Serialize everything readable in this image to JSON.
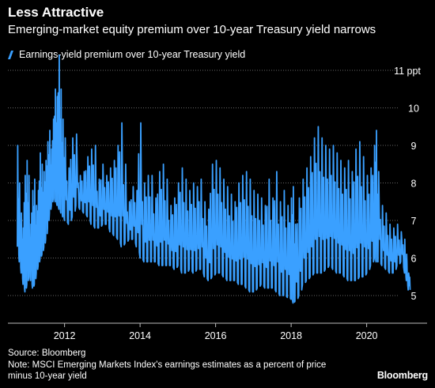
{
  "title": "Less Attractive",
  "subtitle": "Emerging-market equity premium over 10-year Treasury yield narrows",
  "legend_label": "Earnings-yield premium over 10-year Treasury yield",
  "footer": {
    "source": "Source: Bloomberg",
    "note_line1": "Note: MSCI Emerging Markets Index's earnings estimates as a percent of price",
    "note_line2": "minus 10-year yield"
  },
  "brand": "Bloomberg",
  "colors": {
    "series": "#3aa0ff",
    "grid": "#666666",
    "background": "#000000",
    "text": "#ffffff"
  },
  "chart_data": {
    "type": "line",
    "title": "Less Attractive",
    "subtitle": "Emerging-market equity premium over 10-year Treasury yield narrows",
    "x_tick_labels": [
      "2012",
      "2014",
      "2016",
      "2018",
      "2020"
    ],
    "y_tick_labels": [
      "5",
      "6",
      "7",
      "8",
      "9",
      "10",
      "11 ppt"
    ],
    "y_ticks": [
      5,
      6,
      7,
      8,
      9,
      10,
      11
    ],
    "ylim": [
      4.7,
      11.3
    ],
    "xlim": [
      2010.5,
      2021.6
    ],
    "grid": "horizontal dotted",
    "legend_position": "top-left",
    "series": [
      {
        "name": "Earnings-yield premium over 10-year Treasury yield",
        "x": [
          2010.75,
          2010.8,
          2010.85,
          2010.9,
          2010.95,
          2011.0,
          2011.05,
          2011.1,
          2011.15,
          2011.2,
          2011.25,
          2011.3,
          2011.35,
          2011.4,
          2011.45,
          2011.5,
          2011.55,
          2011.6,
          2011.65,
          2011.7,
          2011.75,
          2011.8,
          2011.85,
          2011.9,
          2011.95,
          2012.0,
          2012.1,
          2012.2,
          2012.3,
          2012.4,
          2012.5,
          2012.6,
          2012.7,
          2012.8,
          2012.9,
          2013.0,
          2013.1,
          2013.2,
          2013.3,
          2013.4,
          2013.5,
          2013.6,
          2013.7,
          2013.8,
          2013.9,
          2014.0,
          2014.1,
          2014.2,
          2014.3,
          2014.4,
          2014.5,
          2014.6,
          2014.7,
          2014.8,
          2014.9,
          2015.0,
          2015.1,
          2015.2,
          2015.3,
          2015.4,
          2015.5,
          2015.6,
          2015.7,
          2015.8,
          2015.9,
          2016.0,
          2016.1,
          2016.2,
          2016.3,
          2016.4,
          2016.5,
          2016.6,
          2016.7,
          2016.8,
          2016.9,
          2017.0,
          2017.1,
          2017.2,
          2017.3,
          2017.4,
          2017.5,
          2017.6,
          2017.7,
          2017.8,
          2017.9,
          2018.0,
          2018.05,
          2018.1,
          2018.2,
          2018.3,
          2018.4,
          2018.5,
          2018.6,
          2018.7,
          2018.8,
          2018.9,
          2019.0,
          2019.1,
          2019.2,
          2019.3,
          2019.4,
          2019.5,
          2019.6,
          2019.7,
          2019.8,
          2019.9,
          2020.0,
          2020.1,
          2020.2,
          2020.25,
          2020.3,
          2020.4,
          2020.5,
          2020.6,
          2020.7,
          2020.8,
          2020.9,
          2021.0,
          2021.05,
          2021.1
        ],
        "low": [
          6.3,
          5.9,
          5.6,
          5.3,
          5.1,
          5.3,
          5.5,
          5.4,
          5.2,
          5.3,
          5.6,
          5.8,
          6.0,
          6.1,
          6.3,
          6.5,
          6.8,
          7.2,
          7.4,
          7.6,
          7.5,
          7.4,
          7.3,
          7.2,
          7.1,
          7.0,
          6.9,
          7.1,
          7.4,
          7.3,
          7.2,
          7.1,
          6.9,
          6.8,
          6.8,
          6.9,
          6.9,
          6.7,
          6.6,
          6.5,
          6.3,
          6.4,
          6.5,
          6.5,
          6.3,
          6.0,
          5.9,
          5.9,
          5.9,
          5.9,
          5.8,
          5.8,
          5.8,
          5.8,
          5.7,
          5.8,
          5.6,
          5.6,
          5.7,
          5.6,
          5.7,
          5.7,
          5.5,
          5.4,
          5.5,
          5.6,
          5.6,
          5.5,
          5.4,
          5.4,
          5.4,
          5.3,
          5.3,
          5.2,
          5.1,
          5.1,
          5.2,
          5.3,
          5.2,
          5.2,
          5.2,
          5.1,
          5.0,
          5.0,
          4.95,
          4.9,
          4.8,
          4.85,
          5.0,
          5.3,
          5.4,
          5.5,
          5.6,
          5.6,
          5.6,
          5.7,
          5.8,
          5.7,
          5.6,
          5.6,
          5.5,
          5.4,
          5.4,
          5.4,
          5.5,
          5.5,
          5.6,
          5.8,
          6.0,
          5.9,
          5.9,
          5.8,
          5.7,
          5.6,
          5.6,
          5.8,
          5.9,
          5.6,
          5.4,
          5.15
        ],
        "high": [
          9.0,
          8.0,
          7.2,
          6.8,
          8.2,
          8.6,
          8.2,
          6.9,
          7.8,
          8.1,
          7.4,
          7.8,
          8.8,
          8.5,
          8.3,
          8.6,
          9.1,
          9.4,
          8.9,
          9.7,
          10.5,
          10.3,
          11.4,
          10.5,
          9.7,
          9.2,
          8.4,
          9.2,
          9.3,
          8.2,
          8.3,
          8.7,
          8.9,
          9.0,
          8.1,
          8.5,
          8.2,
          8.4,
          8.6,
          9.0,
          9.6,
          8.5,
          7.5,
          7.9,
          7.8,
          9.6,
          8.0,
          8.2,
          8.2,
          7.6,
          8.3,
          8.5,
          8.1,
          7.4,
          7.6,
          8.0,
          8.4,
          8.1,
          7.8,
          8.0,
          7.9,
          8.1,
          7.5,
          7.3,
          8.5,
          8.6,
          8.4,
          8.1,
          7.9,
          7.7,
          7.5,
          8.0,
          8.2,
          8.3,
          8.1,
          7.8,
          7.7,
          7.6,
          7.4,
          8.1,
          7.6,
          8.3,
          7.5,
          7.8,
          7.4,
          7.6,
          7.9,
          6.9,
          7.6,
          8.1,
          8.4,
          8.7,
          9.2,
          9.5,
          9.2,
          9.0,
          8.9,
          9.0,
          8.8,
          8.6,
          8.4,
          8.6,
          8.3,
          8.9,
          9.1,
          8.7,
          8.2,
          8.4,
          9.0,
          9.4,
          8.3,
          7.4,
          7.2,
          6.9,
          6.8,
          6.9,
          6.7,
          6.5,
          6.1,
          5.6
        ]
      }
    ]
  }
}
